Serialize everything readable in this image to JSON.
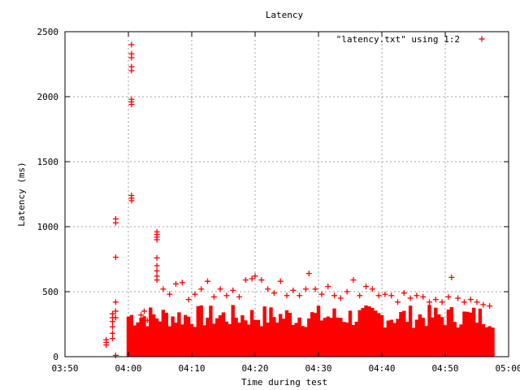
{
  "chart_data": {
    "type": "scatter",
    "title": "Latency",
    "xlabel": "Time during test",
    "ylabel": "Latency (ms)",
    "xlim": [
      "03:50",
      "05:00"
    ],
    "ylim": [
      0,
      2500
    ],
    "x_ticks": [
      "03:50",
      "04:00",
      "04:10",
      "04:20",
      "04:30",
      "04:40",
      "04:50",
      "05:00"
    ],
    "y_ticks": [
      0,
      500,
      1000,
      1500,
      2000,
      2500
    ],
    "grid": true,
    "legend_position": "top-right",
    "series": [
      {
        "name": "\"latency.txt\" using 1:2",
        "color": "#ff0000",
        "marker": "plus",
        "points": [
          {
            "x": "03:56:30",
            "y": 130
          },
          {
            "x": "03:56:30",
            "y": 110
          },
          {
            "x": "03:56:30",
            "y": 90
          },
          {
            "x": "03:57:30",
            "y": 330
          },
          {
            "x": "03:57:30",
            "y": 300
          },
          {
            "x": "03:57:30",
            "y": 270
          },
          {
            "x": "03:57:30",
            "y": 230
          },
          {
            "x": "03:57:30",
            "y": 180
          },
          {
            "x": "03:57:30",
            "y": 140
          },
          {
            "x": "03:58:00",
            "y": 1060
          },
          {
            "x": "03:58:00",
            "y": 1030
          },
          {
            "x": "03:58:00",
            "y": 765
          },
          {
            "x": "03:58:00",
            "y": 420
          },
          {
            "x": "03:58:00",
            "y": 350
          },
          {
            "x": "03:58:00",
            "y": 300
          },
          {
            "x": "03:58:00",
            "y": 10
          },
          {
            "x": "04:00:30",
            "y": 2400
          },
          {
            "x": "04:00:30",
            "y": 2330
          },
          {
            "x": "04:00:30",
            "y": 2300
          },
          {
            "x": "04:00:30",
            "y": 2230
          },
          {
            "x": "04:00:30",
            "y": 2200
          },
          {
            "x": "04:00:30",
            "y": 1980
          },
          {
            "x": "04:00:30",
            "y": 1960
          },
          {
            "x": "04:00:30",
            "y": 1940
          },
          {
            "x": "04:00:30",
            "y": 1240
          },
          {
            "x": "04:00:30",
            "y": 1220
          },
          {
            "x": "04:00:30",
            "y": 1200
          },
          {
            "x": "04:00:30",
            "y": 210
          },
          {
            "x": "04:00:30",
            "y": 160
          },
          {
            "x": "04:00:30",
            "y": 120
          },
          {
            "x": "04:02:00",
            "y": 320
          },
          {
            "x": "04:02:30",
            "y": 350
          },
          {
            "x": "04:03:00",
            "y": 280
          },
          {
            "x": "04:04:30",
            "y": 960
          },
          {
            "x": "04:04:30",
            "y": 940
          },
          {
            "x": "04:04:30",
            "y": 920
          },
          {
            "x": "04:04:30",
            "y": 900
          },
          {
            "x": "04:04:30",
            "y": 760
          },
          {
            "x": "04:04:30",
            "y": 700
          },
          {
            "x": "04:04:30",
            "y": 660
          },
          {
            "x": "04:04:30",
            "y": 620
          },
          {
            "x": "04:04:30",
            "y": 590
          },
          {
            "x": "04:05:30",
            "y": 520
          },
          {
            "x": "04:06:30",
            "y": 480
          },
          {
            "x": "04:07:30",
            "y": 560
          },
          {
            "x": "04:08:30",
            "y": 570
          },
          {
            "x": "04:09:30",
            "y": 440
          },
          {
            "x": "04:10:30",
            "y": 480
          },
          {
            "x": "04:11:30",
            "y": 520
          },
          {
            "x": "04:12:30",
            "y": 580
          },
          {
            "x": "04:13:30",
            "y": 460
          },
          {
            "x": "04:14:30",
            "y": 520
          },
          {
            "x": "04:15:30",
            "y": 470
          },
          {
            "x": "04:16:30",
            "y": 510
          },
          {
            "x": "04:17:30",
            "y": 460
          },
          {
            "x": "04:18:30",
            "y": 590
          },
          {
            "x": "04:19:30",
            "y": 600
          },
          {
            "x": "04:20:00",
            "y": 620
          },
          {
            "x": "04:21:00",
            "y": 590
          },
          {
            "x": "04:22:00",
            "y": 520
          },
          {
            "x": "04:23:00",
            "y": 490
          },
          {
            "x": "04:24:00",
            "y": 580
          },
          {
            "x": "04:25:00",
            "y": 470
          },
          {
            "x": "04:26:00",
            "y": 510
          },
          {
            "x": "04:27:00",
            "y": 470
          },
          {
            "x": "04:28:00",
            "y": 520
          },
          {
            "x": "04:28:30",
            "y": 640
          },
          {
            "x": "04:29:30",
            "y": 520
          },
          {
            "x": "04:30:30",
            "y": 480
          },
          {
            "x": "04:31:30",
            "y": 540
          },
          {
            "x": "04:32:30",
            "y": 470
          },
          {
            "x": "04:33:30",
            "y": 450
          },
          {
            "x": "04:34:30",
            "y": 500
          },
          {
            "x": "04:35:30",
            "y": 590
          },
          {
            "x": "04:36:30",
            "y": 470
          },
          {
            "x": "04:37:30",
            "y": 540
          },
          {
            "x": "04:38:30",
            "y": 520
          },
          {
            "x": "04:39:30",
            "y": 470
          },
          {
            "x": "04:40:30",
            "y": 480
          },
          {
            "x": "04:41:30",
            "y": 470
          },
          {
            "x": "04:42:30",
            "y": 420
          },
          {
            "x": "04:43:30",
            "y": 490
          },
          {
            "x": "04:44:30",
            "y": 450
          },
          {
            "x": "04:45:30",
            "y": 470
          },
          {
            "x": "04:46:30",
            "y": 460
          },
          {
            "x": "04:47:30",
            "y": 420
          },
          {
            "x": "04:48:30",
            "y": 440
          },
          {
            "x": "04:49:30",
            "y": 420
          },
          {
            "x": "04:50:30",
            "y": 460
          },
          {
            "x": "04:51:00",
            "y": 610
          },
          {
            "x": "04:52:00",
            "y": 450
          },
          {
            "x": "04:53:00",
            "y": 420
          },
          {
            "x": "04:54:00",
            "y": 440
          },
          {
            "x": "04:55:00",
            "y": 420
          },
          {
            "x": "04:56:00",
            "y": 400
          },
          {
            "x": "04:57:00",
            "y": 390
          }
        ],
        "dense_band": {
          "x_start": "04:00:00",
          "x_end": "04:57:30",
          "y_min": 0,
          "y_max": 400
        }
      }
    ]
  }
}
